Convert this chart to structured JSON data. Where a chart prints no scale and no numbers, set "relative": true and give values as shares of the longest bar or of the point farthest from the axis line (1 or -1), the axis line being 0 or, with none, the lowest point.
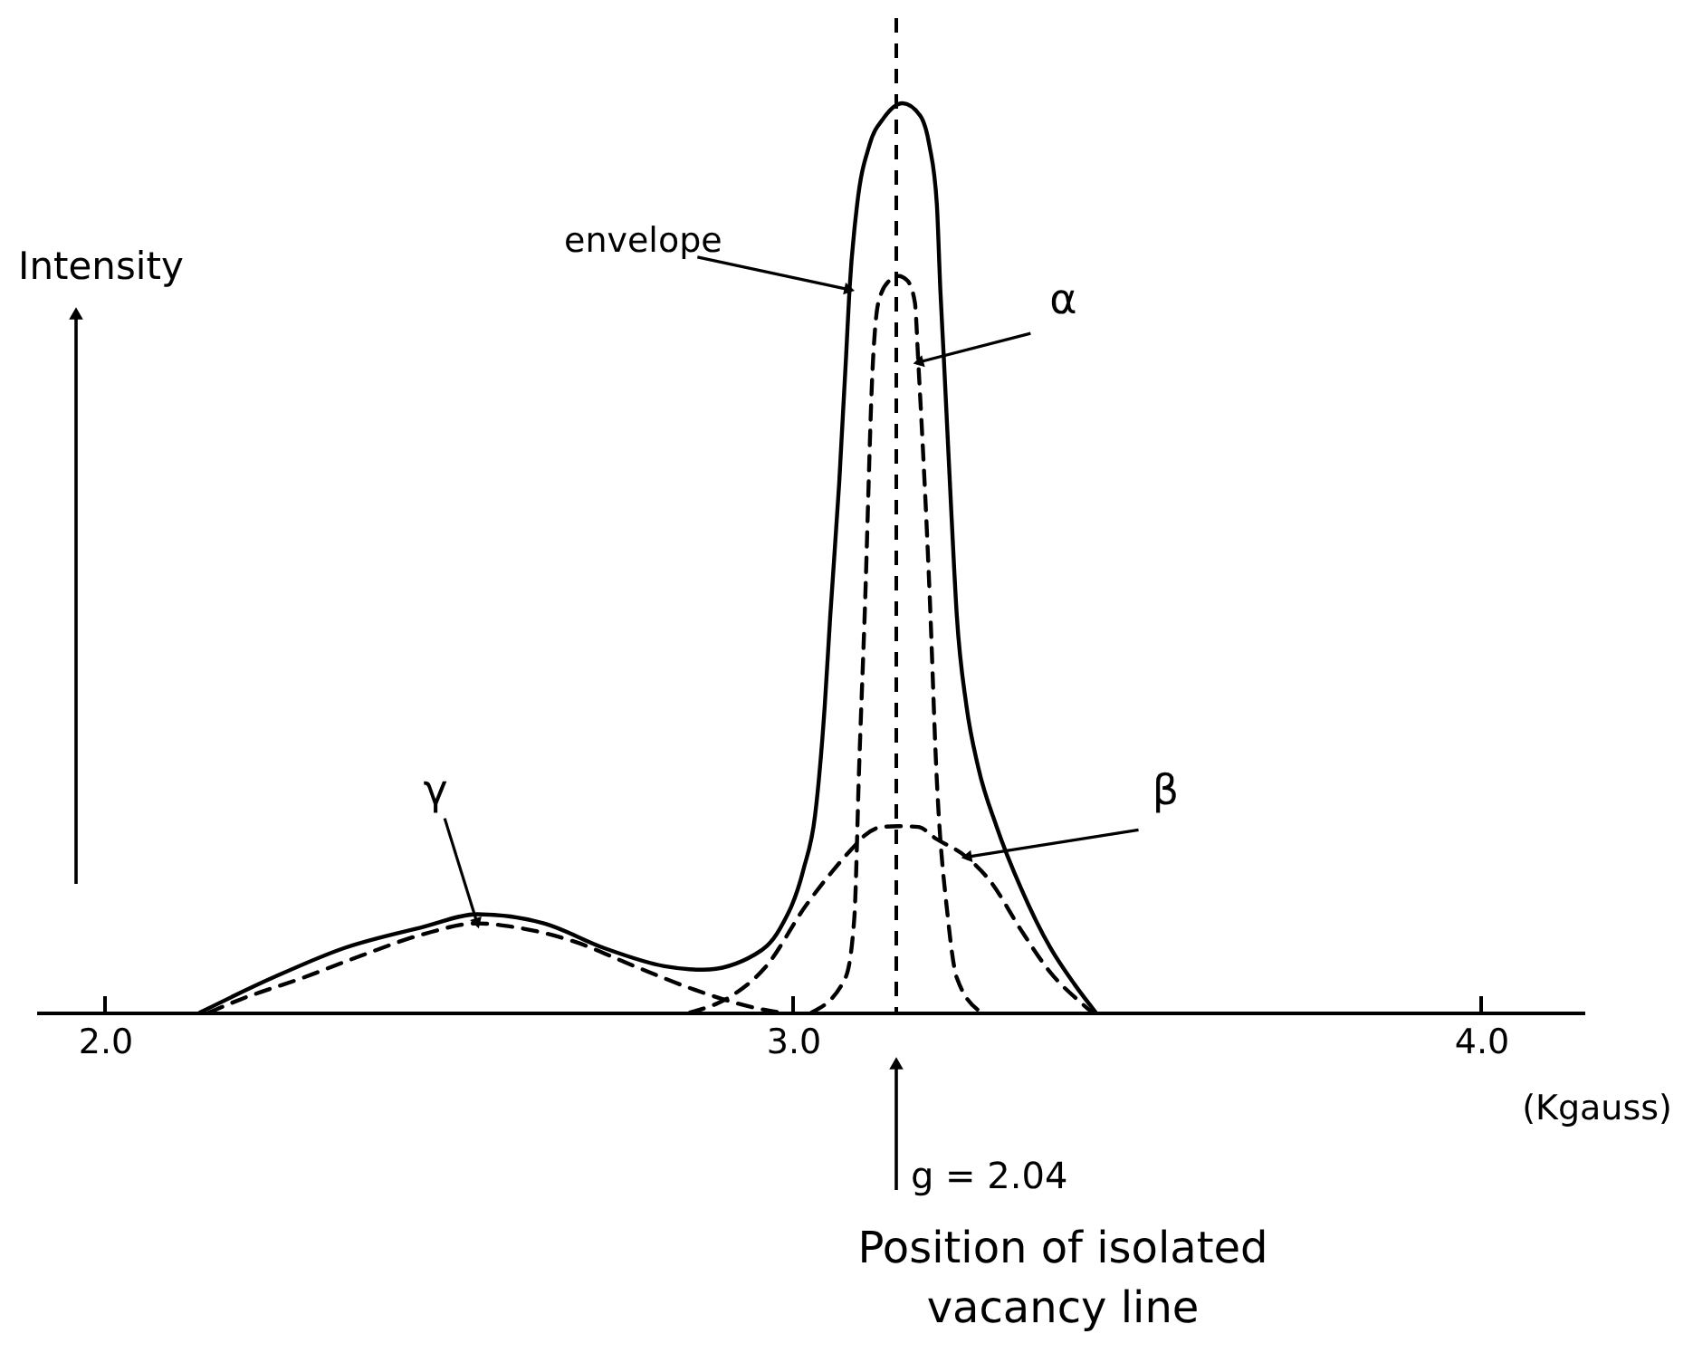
{
  "chart_data": {
    "type": "line",
    "xlabel": "(Kgauss)",
    "ylabel": "Intensity",
    "relative": true,
    "xlim": [
      1.9,
      4.15
    ],
    "xticks": [
      {
        "value": 2,
        "label": "2.0"
      },
      {
        "value": 3,
        "label": "3.0"
      },
      {
        "value": 4,
        "label": "4.0"
      }
    ],
    "tick_labels": "x",
    "grid": false,
    "series": [
      {
        "name": "envelope",
        "color": "#000000",
        "line_style": "solid",
        "x": [
          2.138,
          2.243,
          2.348,
          2.462,
          2.541,
          2.638,
          2.725,
          2.813,
          2.869,
          2.945,
          2.98,
          3.015,
          3.032,
          3.046,
          3.054,
          3.067,
          3.077,
          3.082,
          3.093,
          3.111,
          3.132,
          3.159,
          3.185,
          3.198,
          3.209,
          3.214,
          3.219,
          3.23,
          3.238,
          3.252,
          3.269,
          3.296,
          3.331,
          3.374,
          3.409,
          3.44
        ],
        "values": [
          0,
          0.038,
          0.071,
          0.094,
          0.108,
          0.098,
          0.071,
          0.051,
          0.047,
          0.064,
          0.091,
          0.157,
          0.217,
          0.337,
          0.436,
          0.582,
          0.721,
          0.795,
          0.888,
          0.954,
          0.984,
          1,
          0.986,
          0.954,
          0.888,
          0.795,
          0.721,
          0.55,
          0.436,
          0.337,
          0.27,
          0.204,
          0.137,
          0.071,
          0.031,
          0
        ]
      },
      {
        "name": "α",
        "color": "#000000",
        "line_style": "dashed",
        "x": [
          3.027,
          3.076,
          3.089,
          3.096,
          3.104,
          3.116,
          3.124,
          3.14,
          3.153,
          3.166,
          3.177,
          3.182,
          3.199,
          3.208,
          3.225,
          3.238,
          3.274
        ],
        "values": [
          0,
          0.038,
          0.104,
          0.27,
          0.436,
          0.715,
          0.781,
          0.805,
          0.81,
          0.805,
          0.781,
          0.715,
          0.45,
          0.27,
          0.104,
          0.038,
          0
        ]
      },
      {
        "name": "β",
        "color": "#000000",
        "line_style": "dashed",
        "x": [
          2.85,
          2.91,
          2.96,
          3.019,
          3.059,
          3.094,
          3.103,
          3.129,
          3.153,
          3.182,
          3.208,
          3.252,
          3.287,
          3.331,
          3.374,
          3.418,
          3.435
        ],
        "values": [
          0,
          0.018,
          0.05,
          0.118,
          0.157,
          0.187,
          0.194,
          0.204,
          0.205,
          0.204,
          0.191,
          0.171,
          0.144,
          0.091,
          0.044,
          0.011,
          0
        ]
      },
      {
        "name": "γ",
        "color": "#000000",
        "line_style": "dashed",
        "x": [
          2.151,
          2.199,
          2.287,
          2.374,
          2.462,
          2.541,
          2.594,
          2.682,
          2.769,
          2.857,
          2.945,
          2.98
        ],
        "values": [
          0,
          0.015,
          0.038,
          0.063,
          0.086,
          0.098,
          0.094,
          0.078,
          0.051,
          0.025,
          0.005,
          0
        ]
      }
    ],
    "ref_lines": [
      {
        "axis": "x",
        "value": 3.15,
        "line_style": "dashed",
        "color": "#000000"
      }
    ],
    "annotations": [
      "g = 2.04",
      "Position of isolated vacancy line"
    ]
  }
}
